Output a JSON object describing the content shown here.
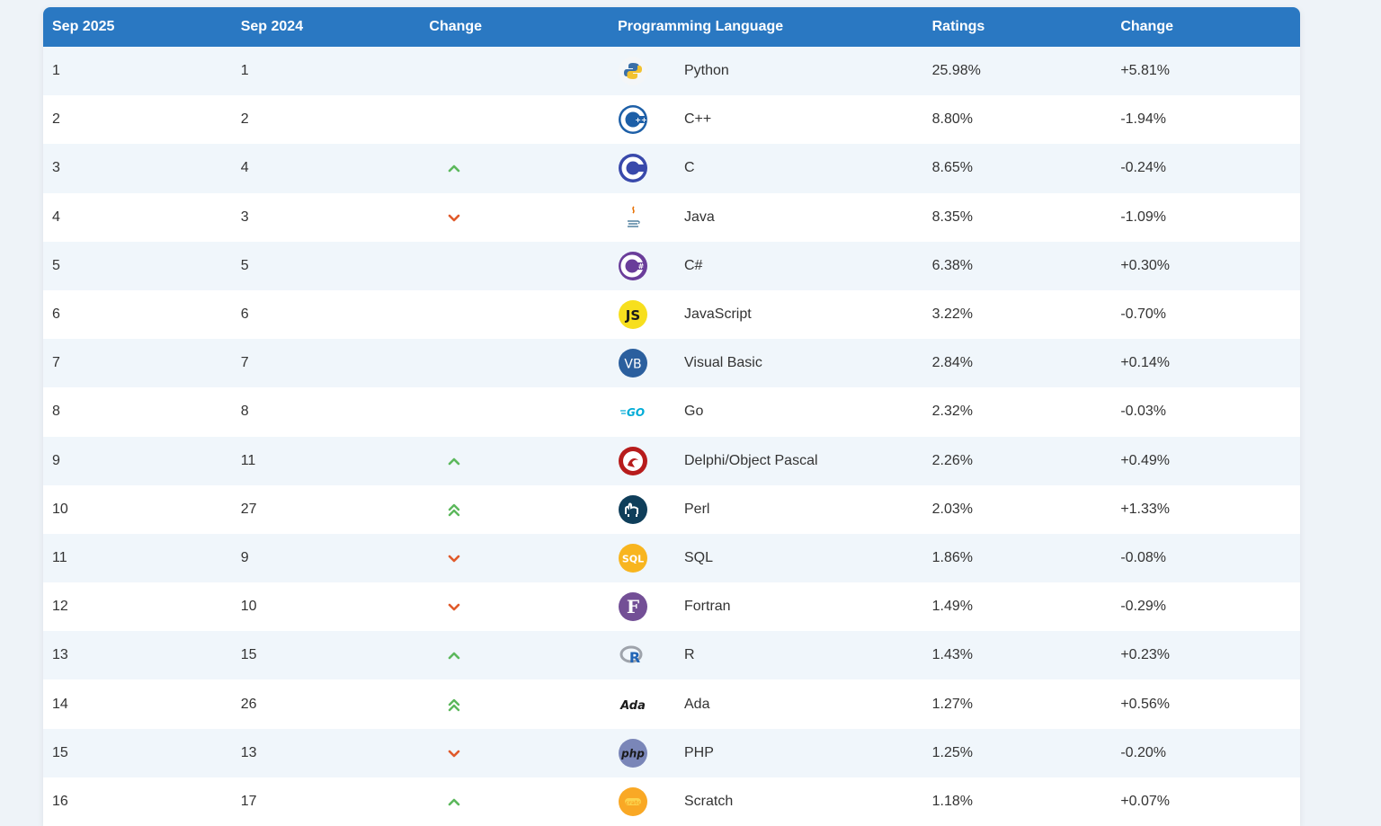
{
  "header": {
    "sep2025": "Sep 2025",
    "sep2024": "Sep 2024",
    "change": "Change",
    "language": "Programming Language",
    "ratings": "Ratings",
    "change2": "Change"
  },
  "colors": {
    "header_bg": "#2a78c2",
    "up": "#5cb85c",
    "down": "#e05a2b"
  },
  "rows": [
    {
      "rank": "1",
      "prev": "1",
      "trend": "none",
      "icon": "python-logo-icon",
      "lang": "Python",
      "rating": "25.98%",
      "delta": "+5.81%"
    },
    {
      "rank": "2",
      "prev": "2",
      "trend": "none",
      "icon": "cplusplus-logo-icon",
      "lang": "C++",
      "rating": "8.80%",
      "delta": "-1.94%"
    },
    {
      "rank": "3",
      "prev": "4",
      "trend": "up",
      "icon": "c-logo-icon",
      "lang": "C",
      "rating": "8.65%",
      "delta": "-0.24%"
    },
    {
      "rank": "4",
      "prev": "3",
      "trend": "down",
      "icon": "java-logo-icon",
      "lang": "Java",
      "rating": "8.35%",
      "delta": "-1.09%"
    },
    {
      "rank": "5",
      "prev": "5",
      "trend": "none",
      "icon": "csharp-logo-icon",
      "lang": "C#",
      "rating": "6.38%",
      "delta": "+0.30%"
    },
    {
      "rank": "6",
      "prev": "6",
      "trend": "none",
      "icon": "javascript-logo-icon",
      "lang": "JavaScript",
      "rating": "3.22%",
      "delta": "-0.70%"
    },
    {
      "rank": "7",
      "prev": "7",
      "trend": "none",
      "icon": "visual-basic-logo-icon",
      "lang": "Visual Basic",
      "rating": "2.84%",
      "delta": "+0.14%"
    },
    {
      "rank": "8",
      "prev": "8",
      "trend": "none",
      "icon": "go-logo-icon",
      "lang": "Go",
      "rating": "2.32%",
      "delta": "-0.03%"
    },
    {
      "rank": "9",
      "prev": "11",
      "trend": "up",
      "icon": "delphi-logo-icon",
      "lang": "Delphi/Object Pascal",
      "rating": "2.26%",
      "delta": "+0.49%"
    },
    {
      "rank": "10",
      "prev": "27",
      "trend": "up2",
      "icon": "perl-logo-icon",
      "lang": "Perl",
      "rating": "2.03%",
      "delta": "+1.33%"
    },
    {
      "rank": "11",
      "prev": "9",
      "trend": "down",
      "icon": "sql-logo-icon",
      "lang": "SQL",
      "rating": "1.86%",
      "delta": "-0.08%"
    },
    {
      "rank": "12",
      "prev": "10",
      "trend": "down",
      "icon": "fortran-logo-icon",
      "lang": "Fortran",
      "rating": "1.49%",
      "delta": "-0.29%"
    },
    {
      "rank": "13",
      "prev": "15",
      "trend": "up",
      "icon": "r-logo-icon",
      "lang": "R",
      "rating": "1.43%",
      "delta": "+0.23%"
    },
    {
      "rank": "14",
      "prev": "26",
      "trend": "up2",
      "icon": "ada-logo-icon",
      "lang": "Ada",
      "rating": "1.27%",
      "delta": "+0.56%"
    },
    {
      "rank": "15",
      "prev": "13",
      "trend": "down",
      "icon": "php-logo-icon",
      "lang": "PHP",
      "rating": "1.25%",
      "delta": "-0.20%"
    },
    {
      "rank": "16",
      "prev": "17",
      "trend": "up",
      "icon": "scratch-logo-icon",
      "lang": "Scratch",
      "rating": "1.18%",
      "delta": "+0.07%"
    }
  ]
}
